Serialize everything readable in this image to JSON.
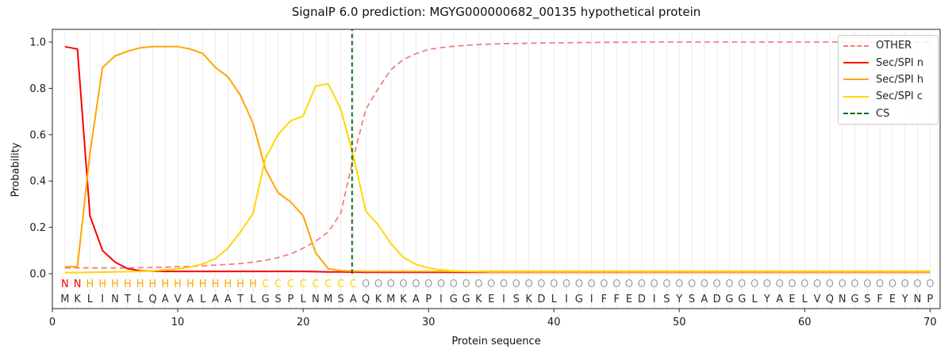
{
  "title": "SignalP 6.0 prediction: MGYG000000682_00135 hypothetical protein",
  "axes": {
    "xlabel": "Protein sequence",
    "ylabel": "Probability",
    "x_ticks": [
      0,
      10,
      20,
      30,
      40,
      50,
      60,
      70
    ],
    "y_ticks": [
      0.0,
      0.2,
      0.4,
      0.6,
      0.8,
      1.0
    ]
  },
  "legend": {
    "items": [
      {
        "label": "OTHER",
        "color": "#f08080",
        "dashed": true
      },
      {
        "label": "Sec/SPI n",
        "color": "#ff0000",
        "dashed": false
      },
      {
        "label": "Sec/SPI h",
        "color": "#ffa500",
        "dashed": false
      },
      {
        "label": "Sec/SPI c",
        "color": "#ffd700",
        "dashed": false
      },
      {
        "label": "CS",
        "color": "#006400",
        "dashed": true
      }
    ]
  },
  "colors": {
    "grid": "#ebebeb",
    "spine": "#262626",
    "tick_label": "#1a1a1a",
    "sequence_letter": "#2e2e2e",
    "residue_label_colors": {
      "N": "#ff0000",
      "H": "#ffa500",
      "C": "#ffd700",
      "O": "#a0a0a0"
    }
  },
  "chart_data": {
    "type": "line",
    "title": "SignalP 6.0 prediction: MGYG000000682_00135 hypothetical protein",
    "xlabel": "Protein sequence",
    "ylabel": "Probability",
    "xlim": [
      0,
      70.8
    ],
    "ylim": [
      -0.15,
      1.055
    ],
    "grid": "vertical-per-residue",
    "legend_position": "upper right",
    "x_range": [
      1,
      70
    ],
    "sequence": "MKLINTLQAVALAATLGSPLNMSAQKMKAPIGGKEISKDLIGIFFEDISYSADGGLYAELVQNGSFEYNP",
    "region_labels": "NNHHHHHHHHHHHHHHCCCCCCCCOOOOOOOOOOOOOOOOOOOOOOOOOOOOOOOOOOOOOOOOOOOOOO",
    "series": [
      {
        "name": "OTHER",
        "color": "#f08080",
        "style": "dashed",
        "values": [
          0.025,
          0.025,
          0.025,
          0.025,
          0.025,
          0.025,
          0.026,
          0.027,
          0.028,
          0.03,
          0.032,
          0.034,
          0.037,
          0.04,
          0.044,
          0.05,
          0.058,
          0.07,
          0.085,
          0.11,
          0.14,
          0.18,
          0.26,
          0.5,
          0.71,
          0.8,
          0.88,
          0.925,
          0.95,
          0.968,
          0.976,
          0.982,
          0.986,
          0.989,
          0.991,
          0.993,
          0.994,
          0.995,
          0.996,
          0.997,
          0.997,
          0.998,
          0.998,
          0.999,
          0.999,
          0.999,
          1.0,
          1.0,
          1.0,
          1.0,
          1.0,
          1.0,
          1.0,
          1.0,
          1.0,
          1.0,
          1.0,
          1.0,
          1.0,
          1.0,
          1.0,
          1.0,
          1.0,
          1.0,
          1.0,
          1.0,
          1.0,
          1.0,
          1.0,
          1.0
        ]
      },
      {
        "name": "Sec/SPI n",
        "color": "#ff0000",
        "style": "solid",
        "values": [
          0.98,
          0.97,
          0.25,
          0.1,
          0.05,
          0.022,
          0.013,
          0.011,
          0.01,
          0.01,
          0.01,
          0.01,
          0.01,
          0.01,
          0.01,
          0.01,
          0.01,
          0.01,
          0.01,
          0.01,
          0.009,
          0.008,
          0.008,
          0.007,
          0.006,
          0.006,
          0.006,
          0.006,
          0.006,
          0.006,
          0.006,
          0.006,
          0.006,
          0.006,
          0.006,
          0.006,
          0.006,
          0.006,
          0.006,
          0.006,
          0.006,
          0.006,
          0.006,
          0.006,
          0.006,
          0.006,
          0.006,
          0.006,
          0.006,
          0.006,
          0.006,
          0.006,
          0.006,
          0.006,
          0.006,
          0.006,
          0.006,
          0.006,
          0.006,
          0.006,
          0.006,
          0.006,
          0.006,
          0.006,
          0.006,
          0.006,
          0.006,
          0.006,
          0.006,
          0.006
        ]
      },
      {
        "name": "Sec/SPI h",
        "color": "#ffa500",
        "style": "solid",
        "values": [
          0.03,
          0.03,
          0.52,
          0.89,
          0.94,
          0.96,
          0.975,
          0.98,
          0.98,
          0.98,
          0.97,
          0.95,
          0.89,
          0.85,
          0.77,
          0.65,
          0.45,
          0.35,
          0.31,
          0.25,
          0.09,
          0.022,
          0.013,
          0.011,
          0.01,
          0.01,
          0.01,
          0.01,
          0.01,
          0.01,
          0.01,
          0.01,
          0.01,
          0.01,
          0.01,
          0.01,
          0.01,
          0.01,
          0.01,
          0.01,
          0.01,
          0.01,
          0.01,
          0.01,
          0.01,
          0.01,
          0.01,
          0.01,
          0.01,
          0.01,
          0.01,
          0.01,
          0.01,
          0.01,
          0.01,
          0.01,
          0.01,
          0.01,
          0.01,
          0.01,
          0.01,
          0.01,
          0.01,
          0.01,
          0.01,
          0.01,
          0.01,
          0.01,
          0.01,
          0.01
        ]
      },
      {
        "name": "Sec/SPI c",
        "color": "#ffd700",
        "style": "solid",
        "values": [
          0.005,
          0.005,
          0.006,
          0.007,
          0.008,
          0.009,
          0.01,
          0.012,
          0.016,
          0.021,
          0.028,
          0.042,
          0.065,
          0.11,
          0.18,
          0.26,
          0.5,
          0.6,
          0.66,
          0.68,
          0.81,
          0.82,
          0.71,
          0.51,
          0.27,
          0.21,
          0.13,
          0.07,
          0.04,
          0.025,
          0.016,
          0.012,
          0.01,
          0.009,
          0.008,
          0.008,
          0.008,
          0.008,
          0.008,
          0.008,
          0.008,
          0.008,
          0.008,
          0.008,
          0.008,
          0.008,
          0.008,
          0.008,
          0.008,
          0.008,
          0.008,
          0.008,
          0.008,
          0.008,
          0.008,
          0.008,
          0.008,
          0.008,
          0.008,
          0.008,
          0.008,
          0.008,
          0.008,
          0.008,
          0.008,
          0.008,
          0.008,
          0.008,
          0.008,
          0.008
        ]
      }
    ],
    "cs_line": {
      "name": "CS",
      "x": 23.9,
      "color": "#006400",
      "style": "dashed"
    }
  }
}
